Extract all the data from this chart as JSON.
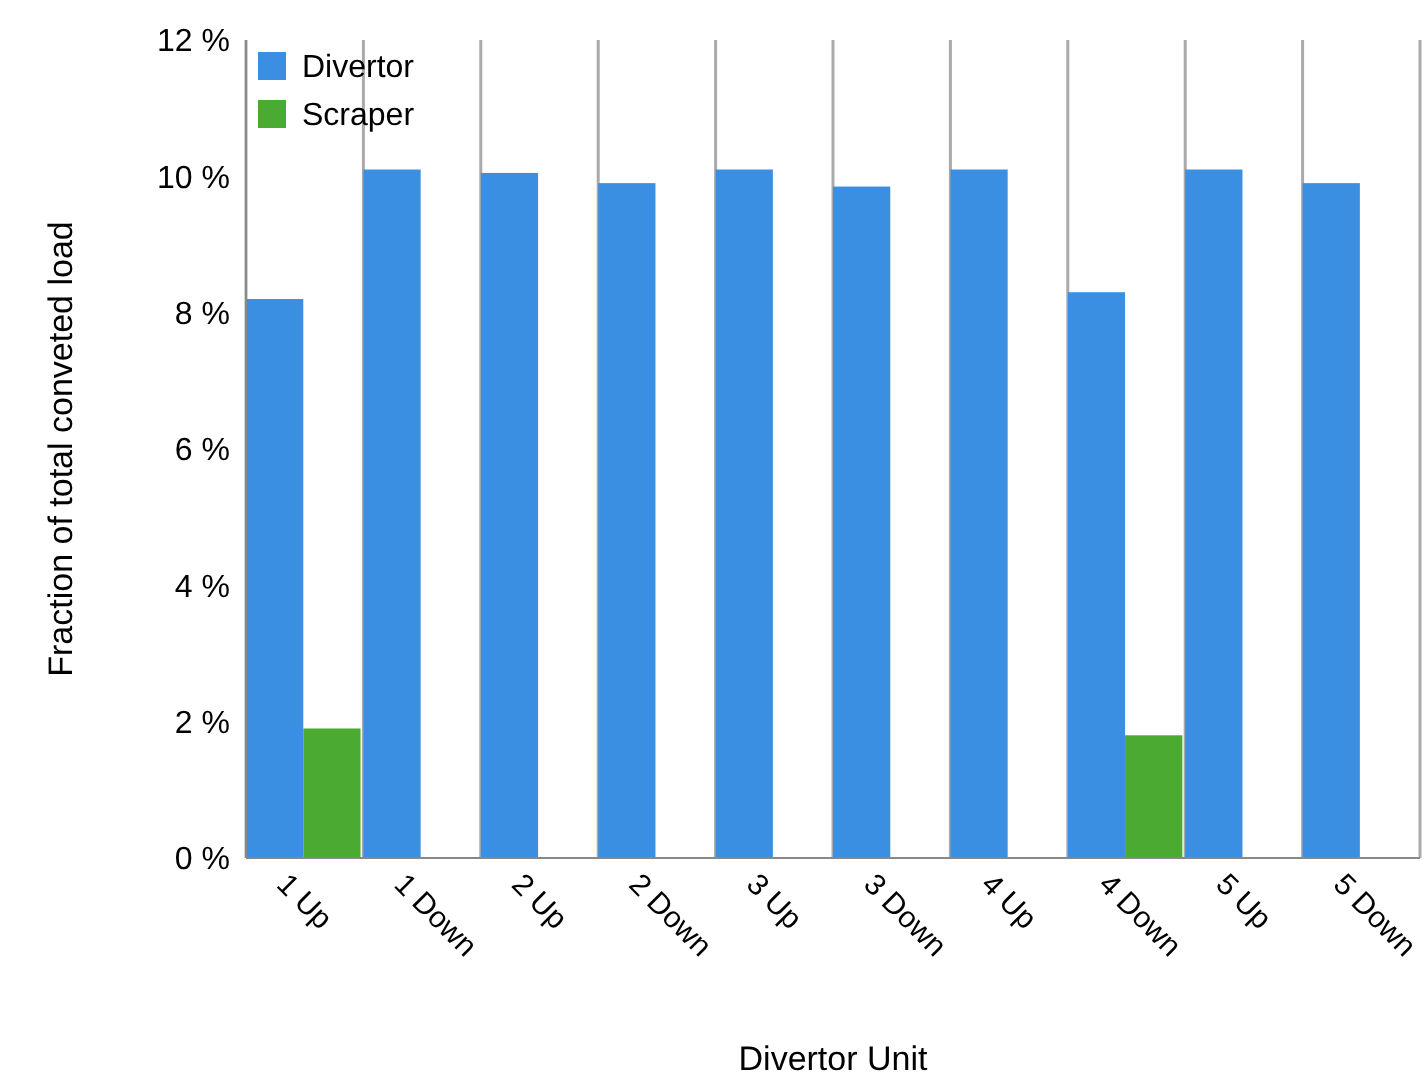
{
  "chart_data": {
    "type": "bar",
    "xlabel": "Divertor Unit",
    "ylabel": "Fraction of total conveted load",
    "categories": [
      "1 Up",
      "1 Down",
      "2 Up",
      "2 Down",
      "3 Up",
      "3 Down",
      "4 Up",
      "4 Down",
      "5 Up",
      "5 Down"
    ],
    "series": [
      {
        "name": "Divertor",
        "color": "#3a8fe3",
        "values": [
          8.2,
          10.1,
          10.05,
          9.9,
          10.1,
          9.85,
          10.1,
          8.3,
          10.1,
          9.9
        ]
      },
      {
        "name": "Scraper",
        "color": "#4aaa32",
        "values": [
          1.9,
          null,
          null,
          null,
          null,
          null,
          null,
          1.8,
          null,
          null
        ]
      }
    ],
    "ylim": [
      0,
      12
    ],
    "yticks": [
      {
        "value": 0,
        "label": "0 %"
      },
      {
        "value": 2,
        "label": "2 %"
      },
      {
        "value": 4,
        "label": "4 %"
      },
      {
        "value": 6,
        "label": "6 %"
      },
      {
        "value": 8,
        "label": "8 %"
      },
      {
        "value": 10,
        "label": "10 %"
      },
      {
        "value": 12,
        "label": "12 %"
      }
    ],
    "grid": "x",
    "legend": "top left"
  }
}
